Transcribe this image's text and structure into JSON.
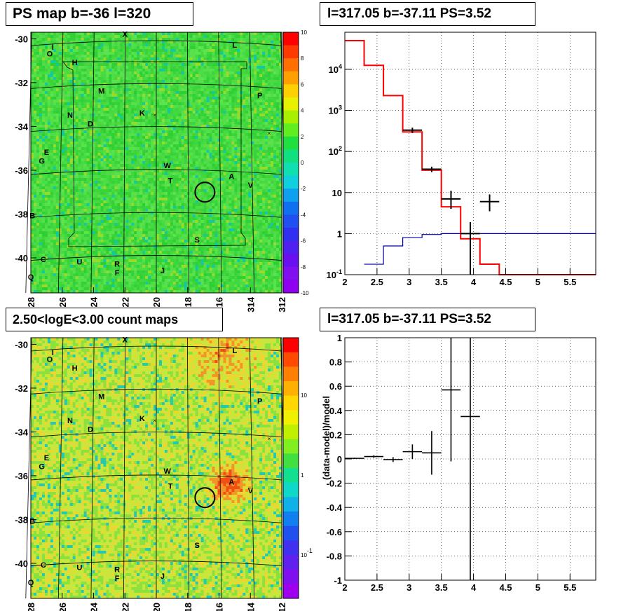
{
  "titles": {
    "map1": "PS map b=-36 l=320",
    "spec": "l=317.05 b=-37.11 PS=3.52",
    "map2": "2.50<logE<3.00 count maps",
    "resid": "l=317.05 b=-37.11 PS=3.52"
  },
  "colors": {
    "model_red": "#ff0000",
    "blue_curve": "#0000aa",
    "data": "#000000"
  },
  "maps": {
    "lon_ticks": [
      "328",
      "326",
      "324",
      "322",
      "320",
      "318",
      "316",
      "314",
      "312"
    ],
    "lat_ticks": [
      "-30",
      "-32",
      "-34",
      "-36",
      "-38",
      "-40"
    ],
    "palette1_ticks": [
      "10",
      "8",
      "6",
      "4",
      "2",
      "0",
      "-2",
      "-4",
      "-6",
      "-8",
      "-10"
    ],
    "palette2_ticks": [
      "10",
      "1",
      "10-1"
    ],
    "sources": [
      {
        "n": "X",
        "lon": 322.0,
        "lat": -29.9
      },
      {
        "n": "L",
        "lon": 315.0,
        "lat": -30.4
      },
      {
        "n": "I",
        "lon": 326.6,
        "lat": -30.5
      },
      {
        "n": "O",
        "lon": 326.8,
        "lat": -30.8
      },
      {
        "n": "H",
        "lon": 325.2,
        "lat": -31.2
      },
      {
        "n": "M",
        "lon": 323.5,
        "lat": -32.5
      },
      {
        "n": "P",
        "lon": 313.4,
        "lat": -32.7
      },
      {
        "n": "K",
        "lon": 320.9,
        "lat": -33.5
      },
      {
        "n": "N",
        "lon": 325.5,
        "lat": -33.6
      },
      {
        "n": "D",
        "lon": 324.2,
        "lat": -34.0
      },
      {
        "n": "E",
        "lon": 327.0,
        "lat": -35.3
      },
      {
        "n": "G",
        "lon": 327.3,
        "lat": -35.7
      },
      {
        "n": "W",
        "lon": 319.3,
        "lat": -35.9
      },
      {
        "n": "A",
        "lon": 315.2,
        "lat": -36.4
      },
      {
        "n": "T",
        "lon": 319.1,
        "lat": -36.6
      },
      {
        "n": "V",
        "lon": 314.0,
        "lat": -36.8
      },
      {
        "n": "B",
        "lon": 327.9,
        "lat": -38.2
      },
      {
        "n": "S",
        "lon": 317.4,
        "lat": -39.3
      },
      {
        "n": "C",
        "lon": 327.2,
        "lat": -40.2
      },
      {
        "n": "U",
        "lon": 324.9,
        "lat": -40.3
      },
      {
        "n": "R",
        "lon": 322.5,
        "lat": -40.4
      },
      {
        "n": "F",
        "lon": 322.5,
        "lat": -40.8
      },
      {
        "n": "J",
        "lon": 319.6,
        "lat": -40.7
      },
      {
        "n": "Q",
        "lon": 328.0,
        "lat": -41.0
      }
    ],
    "roi_circle": {
      "lon": 316.9,
      "lat": -37.0
    }
  },
  "chart_data": [
    {
      "type": "line",
      "title": "l=317.05 b=-37.11 PS=3.52",
      "xlabel": "",
      "ylabel": "",
      "xlim": [
        2,
        5.9
      ],
      "ylim": [
        0.1,
        80000
      ],
      "log_y": true,
      "grid": true,
      "x_ticks": [
        "2",
        "2.5",
        "3",
        "3.5",
        "4",
        "4.5",
        "5",
        "5.5"
      ],
      "y_ticks": [
        {
          "v": 0.1,
          "t": "10-1"
        },
        {
          "v": 1,
          "t": "1"
        },
        {
          "v": 10,
          "t": "10"
        },
        {
          "v": 100,
          "t": "102"
        },
        {
          "v": 1000,
          "t": "103"
        },
        {
          "v": 10000,
          "t": "104"
        }
      ],
      "series": [
        {
          "style": "step",
          "color": "#ff0000",
          "edges": [
            2,
            2.3,
            2.6,
            2.9,
            3.2,
            3.5,
            3.8,
            4.1,
            4.4,
            5.9
          ],
          "values": [
            50000,
            12500,
            2300,
            300,
            35,
            4.5,
            0.75,
            0.18,
            0.1
          ]
        },
        {
          "style": "step",
          "color": "#0000aa",
          "edges": [
            2.3,
            2.6,
            2.9,
            3.2,
            3.5,
            3.8,
            4.1,
            5.9
          ],
          "values": [
            0.18,
            0.5,
            0.8,
            0.95,
            1.0,
            1.0,
            1.0
          ]
        },
        {
          "style": "errorbar",
          "color": "#000000",
          "points": [
            {
              "x": 3.05,
              "y": 330,
              "xerr": 0.15
            },
            {
              "x": 3.35,
              "y": 37,
              "xerr": 0.15
            },
            {
              "x": 3.65,
              "y": 7,
              "xerr": 0.15,
              "ylo": 4,
              "yhi": 11
            },
            {
              "x": 3.95,
              "y": 1.0,
              "xerr": 0.15,
              "ylo": 0.1,
              "yhi": 1.9
            },
            {
              "x": 4.25,
              "y": 6,
              "xerr": 0.15,
              "ylo": 3.5,
              "yhi": 9
            }
          ]
        }
      ]
    },
    {
      "type": "scatter",
      "title": "l=317.05 b=-37.11 PS=3.52",
      "xlabel": "",
      "ylabel": "(data-model)/model",
      "xlim": [
        2,
        5.9
      ],
      "ylim": [
        -1,
        1
      ],
      "grid": true,
      "x_ticks": [
        "2",
        "2.5",
        "3",
        "3.5",
        "4",
        "4.5",
        "5",
        "5.5"
      ],
      "y_ticks": [
        "-1",
        "-0.8",
        "-0.6",
        "-0.4",
        "-0.2",
        "0",
        "0.2",
        "0.4",
        "0.6",
        "0.8",
        "1"
      ],
      "points": [
        {
          "x": 2.15,
          "y": 0.005,
          "xerr": 0.15,
          "yerr": 0.005
        },
        {
          "x": 2.45,
          "y": 0.02,
          "xerr": 0.15,
          "yerr": 0.01
        },
        {
          "x": 2.75,
          "y": -0.005,
          "xerr": 0.15,
          "yerr": 0.02
        },
        {
          "x": 3.05,
          "y": 0.06,
          "xerr": 0.15,
          "yerr": 0.06
        },
        {
          "x": 3.35,
          "y": 0.05,
          "xerr": 0.15,
          "yerr": 0.18
        },
        {
          "x": 3.65,
          "y": 0.57,
          "xerr": 0.15,
          "ylo": -0.02,
          "yhi": 1.0
        },
        {
          "x": 3.95,
          "y": 0.35,
          "xerr": 0.15,
          "ylo": -1.0,
          "yhi": 1.0
        }
      ]
    }
  ]
}
